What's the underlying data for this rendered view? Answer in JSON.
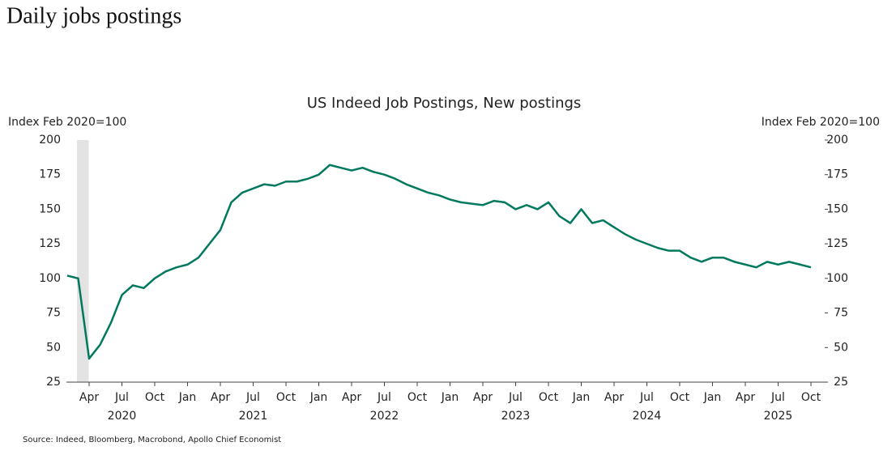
{
  "header": "Daily jobs postings",
  "chart_data": {
    "type": "line",
    "title": "US Indeed Job Postings, New postings",
    "ylabel": "Index Feb 2020=100",
    "y2label": "Index Feb 2020=100",
    "source": "Source: Indeed, Bloomberg, Macrobond, Apollo Chief Economist",
    "x": [
      "2020-02",
      "2020-03",
      "2020-04",
      "2020-05",
      "2020-06",
      "2020-07",
      "2020-08",
      "2020-09",
      "2020-10",
      "2020-11",
      "2020-12",
      "2021-01",
      "2021-02",
      "2021-03",
      "2021-04",
      "2021-05",
      "2021-06",
      "2021-07",
      "2021-08",
      "2021-09",
      "2021-10",
      "2021-11",
      "2021-12",
      "2022-01",
      "2022-02",
      "2022-03",
      "2022-04",
      "2022-05",
      "2022-06",
      "2022-07",
      "2022-08",
      "2022-09",
      "2022-10",
      "2022-11",
      "2022-12",
      "2023-01",
      "2023-02",
      "2023-03",
      "2023-04",
      "2023-05",
      "2023-06",
      "2023-07",
      "2023-08",
      "2023-09",
      "2023-10",
      "2023-11",
      "2023-12",
      "2024-01",
      "2024-02",
      "2024-03",
      "2024-04",
      "2024-05",
      "2024-06",
      "2024-07",
      "2024-08",
      "2024-09",
      "2024-10",
      "2024-11",
      "2024-12",
      "2025-01",
      "2025-02",
      "2025-03",
      "2025-04",
      "2025-05",
      "2025-06",
      "2025-07",
      "2025-08",
      "2025-09",
      "2025-10"
    ],
    "series": [
      {
        "name": "New postings",
        "color": "#00795f",
        "values": [
          102,
          100,
          42,
          52,
          68,
          88,
          95,
          93,
          100,
          105,
          108,
          110,
          115,
          125,
          135,
          155,
          162,
          165,
          168,
          167,
          170,
          170,
          172,
          175,
          182,
          180,
          178,
          180,
          177,
          175,
          172,
          168,
          165,
          162,
          160,
          157,
          155,
          154,
          153,
          156,
          155,
          150,
          153,
          150,
          155,
          145,
          140,
          150,
          140,
          142,
          137,
          132,
          128,
          125,
          122,
          120,
          120,
          115,
          112,
          115,
          115,
          112,
          110,
          108,
          112,
          110,
          112,
          110,
          108
        ]
      }
    ],
    "shaded": {
      "from": "2020-02",
      "to": "2020-03",
      "color": "#e3e3e3"
    },
    "xticks": [
      {
        "value": "2020-04",
        "label": "Apr"
      },
      {
        "value": "2020-07",
        "label": "Jul"
      },
      {
        "value": "2020-10",
        "label": "Oct"
      },
      {
        "value": "2021-01",
        "label": "Jan"
      },
      {
        "value": "2021-04",
        "label": "Apr"
      },
      {
        "value": "2021-07",
        "label": "Jul"
      },
      {
        "value": "2021-10",
        "label": "Oct"
      },
      {
        "value": "2022-01",
        "label": "Jan"
      },
      {
        "value": "2022-04",
        "label": "Apr"
      },
      {
        "value": "2022-07",
        "label": "Jul"
      },
      {
        "value": "2022-10",
        "label": "Oct"
      },
      {
        "value": "2023-01",
        "label": "Jan"
      },
      {
        "value": "2023-04",
        "label": "Apr"
      },
      {
        "value": "2023-07",
        "label": "Jul"
      },
      {
        "value": "2023-10",
        "label": "Oct"
      },
      {
        "value": "2024-01",
        "label": "Jan"
      },
      {
        "value": "2024-04",
        "label": "Apr"
      },
      {
        "value": "2024-07",
        "label": "Jul"
      },
      {
        "value": "2024-10",
        "label": "Oct"
      },
      {
        "value": "2025-01",
        "label": "Jan"
      },
      {
        "value": "2025-04",
        "label": "Apr"
      },
      {
        "value": "2025-07",
        "label": "Jul"
      },
      {
        "value": "2025-10",
        "label": "Oct"
      }
    ],
    "years": [
      "2020",
      "2021",
      "2022",
      "2023",
      "2024",
      "2025"
    ],
    "ylim": [
      25,
      200
    ],
    "yticks": [
      25,
      50,
      75,
      100,
      125,
      150,
      175,
      200
    ],
    "y2lim": [
      25,
      200
    ],
    "y2ticks": [
      25,
      50,
      75,
      100,
      125,
      150,
      175,
      200
    ],
    "grid": false
  }
}
